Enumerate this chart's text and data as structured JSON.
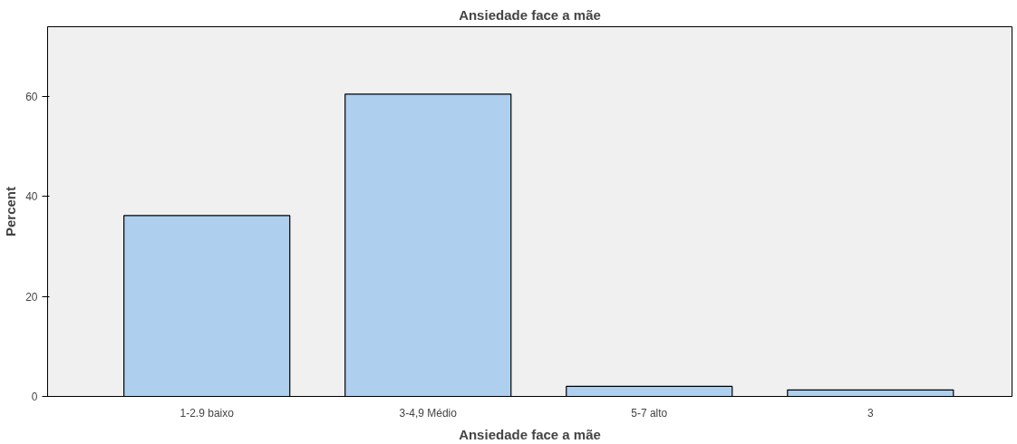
{
  "chart_data": {
    "type": "bar",
    "title": "Ansiedade face a mãe",
    "xlabel": "Ansiedade face a mãe",
    "ylabel": "Percent",
    "categories": [
      "1-2.9 baixo",
      "3-4,9 Médio",
      "5-7 alto",
      "3"
    ],
    "values": [
      36.2,
      60.5,
      2.0,
      1.3
    ],
    "color": "#aecfee",
    "ylim": [
      0,
      74
    ],
    "yticks": [
      0,
      20,
      40,
      60
    ],
    "grid": false
  }
}
